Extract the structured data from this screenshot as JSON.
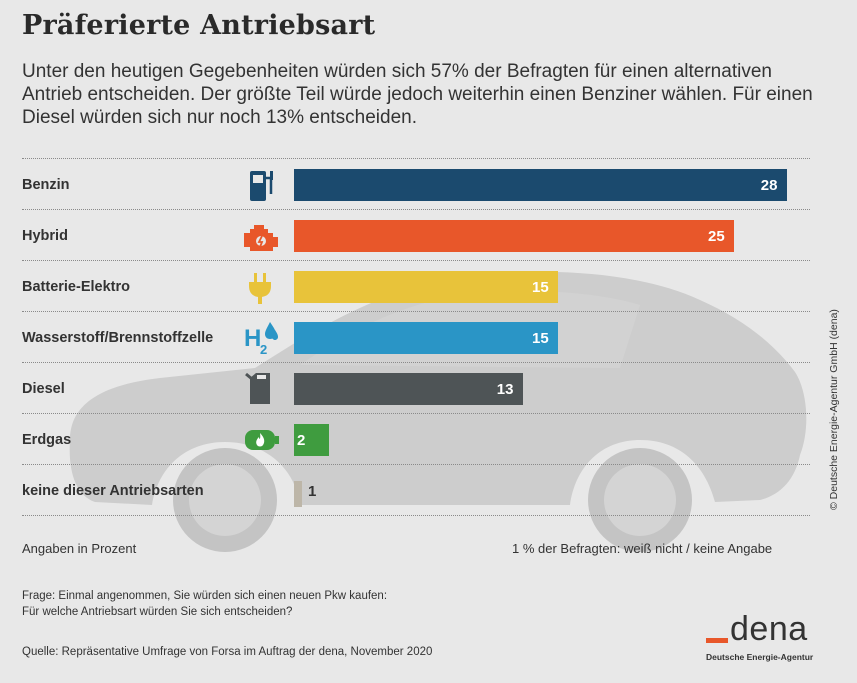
{
  "title": "Präferierte Antriebsart",
  "subtitle": "Unter den heutigen Gegebenheiten würden sich 57% der Befragten für einen alternativen Antrieb entscheiden. Der größte Teil würde jedoch weiterhin einen Benziner wählen. Für einen Diesel würden sich nur noch 13% entscheiden.",
  "chart_data": {
    "type": "bar",
    "orientation": "horizontal",
    "categories": [
      "Benzin",
      "Hybrid",
      "Batterie-Elektro",
      "Wasserstoff/Brennstoffzelle",
      "Diesel",
      "Erdgas",
      "keine dieser Antriebsarten"
    ],
    "values": [
      28,
      25,
      15,
      15,
      13,
      2,
      1
    ],
    "colors": [
      "#1b4a6e",
      "#e8572a",
      "#e8c33a",
      "#2a95c6",
      "#4e5456",
      "#3f9c3f",
      "#bdb6a8"
    ],
    "icons": [
      "fuel-pump-icon",
      "engine-icon",
      "plug-icon",
      "hydrogen-icon",
      "jerrycan-icon",
      "gas-cylinder-icon",
      ""
    ],
    "grid": false
  },
  "footer": {
    "units": "Angaben in Prozent",
    "no_answer": "1 % der Befragten: weiß nicht / keine Angabe",
    "question_line1": "Frage: Einmal angenommen, Sie würden sich einen neuen Pkw kaufen:",
    "question_line2": "Für welche Antriebsart würden Sie sich entscheiden?",
    "source": "Quelle: Repräsentative Umfrage von Forsa im Auftrag der dena, November 2020"
  },
  "copyright": "© Deutsche Energie-Agentur GmbH (dena)",
  "logo": {
    "word": "dena",
    "sub": "Deutsche Energie-Agentur"
  }
}
